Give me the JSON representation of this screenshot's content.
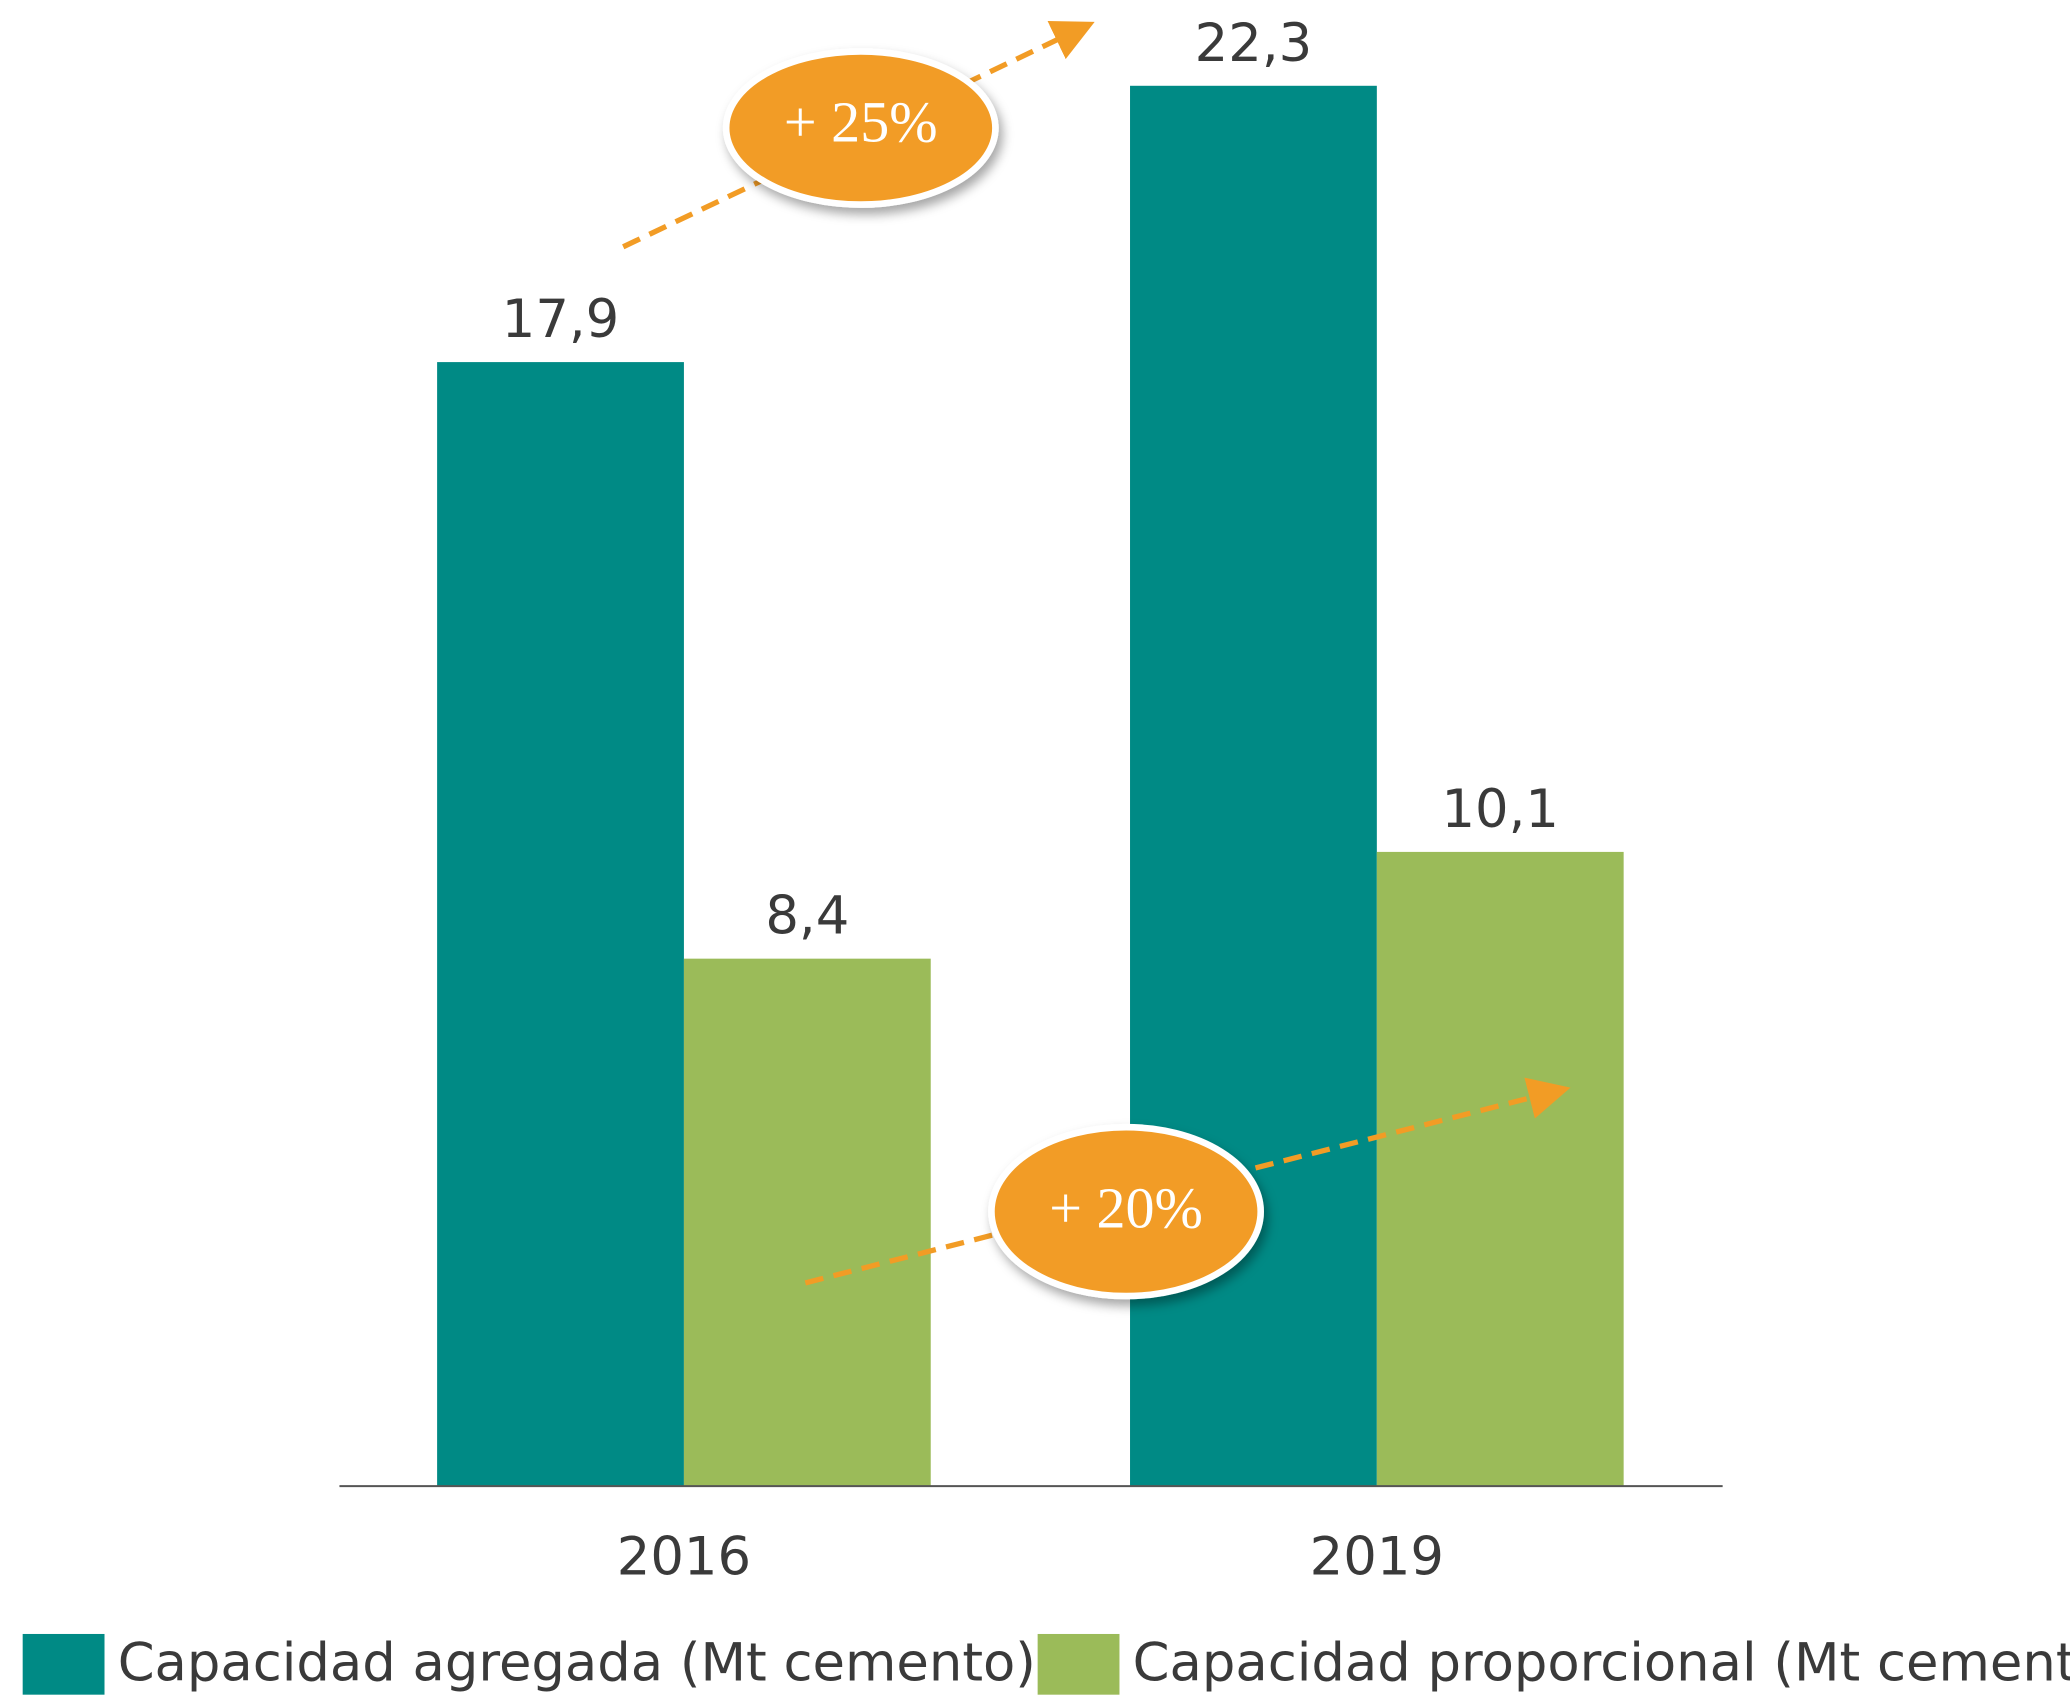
{
  "chart_data": {
    "type": "bar",
    "categories": [
      "2016",
      "2019"
    ],
    "series": [
      {
        "name": "Capacidad agregada (Mt cemento)",
        "color": "#008a85",
        "values": [
          17.9,
          22.3
        ],
        "value_labels": [
          "17,9",
          "22,3"
        ]
      },
      {
        "name": "Capacidad proporcional (Mt cemento)",
        "color": "#9bbb59",
        "values": [
          8.4,
          10.1
        ],
        "value_labels": [
          "8,4",
          "10,1"
        ]
      }
    ],
    "annotations": [
      "+ 25%",
      "+ 20%"
    ],
    "legend": "bottom"
  }
}
